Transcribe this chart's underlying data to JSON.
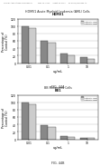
{
  "bg_color": "#ffffff",
  "header_text": "Human Applications Provisionally          May 14, 2014     Sheet 44 of 11     US 2014/0138835 A1",
  "bar_dark": "#888888",
  "bar_light": "#cccccc",
  "chart1": {
    "main_title": "HDMV1 Acute Myeloid Leukemia (AML) Cells",
    "sub_title": "HDMV1",
    "ylabel": "Percentage of\nControl (%)",
    "xlabel": "ug/mL",
    "ylim": [
      0,
      120
    ],
    "yticks": [
      0,
      20,
      40,
      60,
      80,
      100,
      120
    ],
    "xtick_labels": [
      "0.01",
      "0.1",
      "1",
      "10"
    ],
    "vals_dark": [
      100,
      60,
      25,
      15
    ],
    "vals_light": [
      95,
      55,
      22,
      12
    ],
    "legend_labels": [
      "Anti-PAL IgG",
      "Anti-PAL IgG"
    ],
    "fig_label": "FIG. 44A"
  },
  "chart2": {
    "main_title": "BB Melanoma Cells",
    "sub_title": "BB1",
    "ylabel": "Percentage of\nControl (%)",
    "xlabel": "ug/mL",
    "ylim": [
      0,
      120
    ],
    "yticks": [
      0,
      20,
      40,
      60,
      80,
      100,
      120
    ],
    "xtick_labels": [
      "0.01",
      "0.1",
      "1",
      "10"
    ],
    "vals_dark": [
      100,
      38,
      8,
      5
    ],
    "vals_light": [
      95,
      33,
      7,
      4
    ],
    "legend_labels": [
      "Anti-PAL IgG",
      "Anti-PAL IgG"
    ],
    "fig_label": "FIG. 44B"
  }
}
